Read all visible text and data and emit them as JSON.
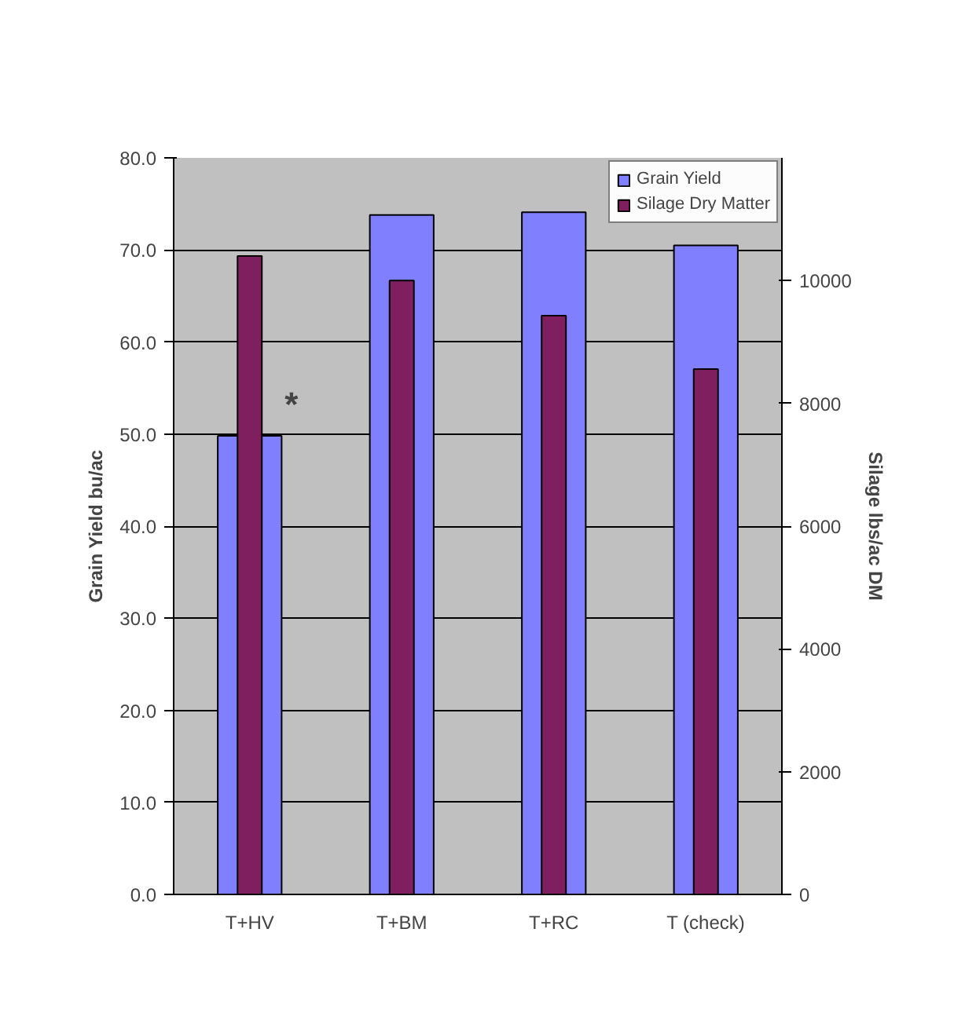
{
  "chart_data": {
    "type": "bar",
    "categories": [
      "T+HV",
      "T+BM",
      "T+RC",
      "T (check)"
    ],
    "ylabel": "Grain Yield bu/ac",
    "y2label": "Silage lbs/ac DM",
    "series": [
      {
        "name": "Grain Yield",
        "color": "#8080ff",
        "values": [
          49.8,
          73.8,
          74.1,
          70.5
        ]
      },
      {
        "name": "Silage Dry Matter",
        "color": "#7f1f5f",
        "values": [
          10400,
          10000,
          9430,
          8560
        ],
        "axis": "y2"
      }
    ],
    "ylim": [
      0,
      80
    ],
    "yticks": [
      {
        "value": 0,
        "label": "0.0"
      },
      {
        "value": 10,
        "label": "10.0"
      },
      {
        "value": 20,
        "label": "20.0"
      },
      {
        "value": 30,
        "label": "30.0"
      },
      {
        "value": 40,
        "label": "40.0"
      },
      {
        "value": 50,
        "label": "50.0"
      },
      {
        "value": 60,
        "label": "60.0"
      },
      {
        "value": 70,
        "label": "70.0"
      },
      {
        "value": 80,
        "label": "80.0"
      }
    ],
    "y2lim": [
      0,
      12000
    ],
    "y2ticks": [
      0,
      2000,
      4000,
      6000,
      8000,
      10000
    ],
    "annotations": [
      "*"
    ],
    "grid": "y",
    "legend": "top right"
  }
}
